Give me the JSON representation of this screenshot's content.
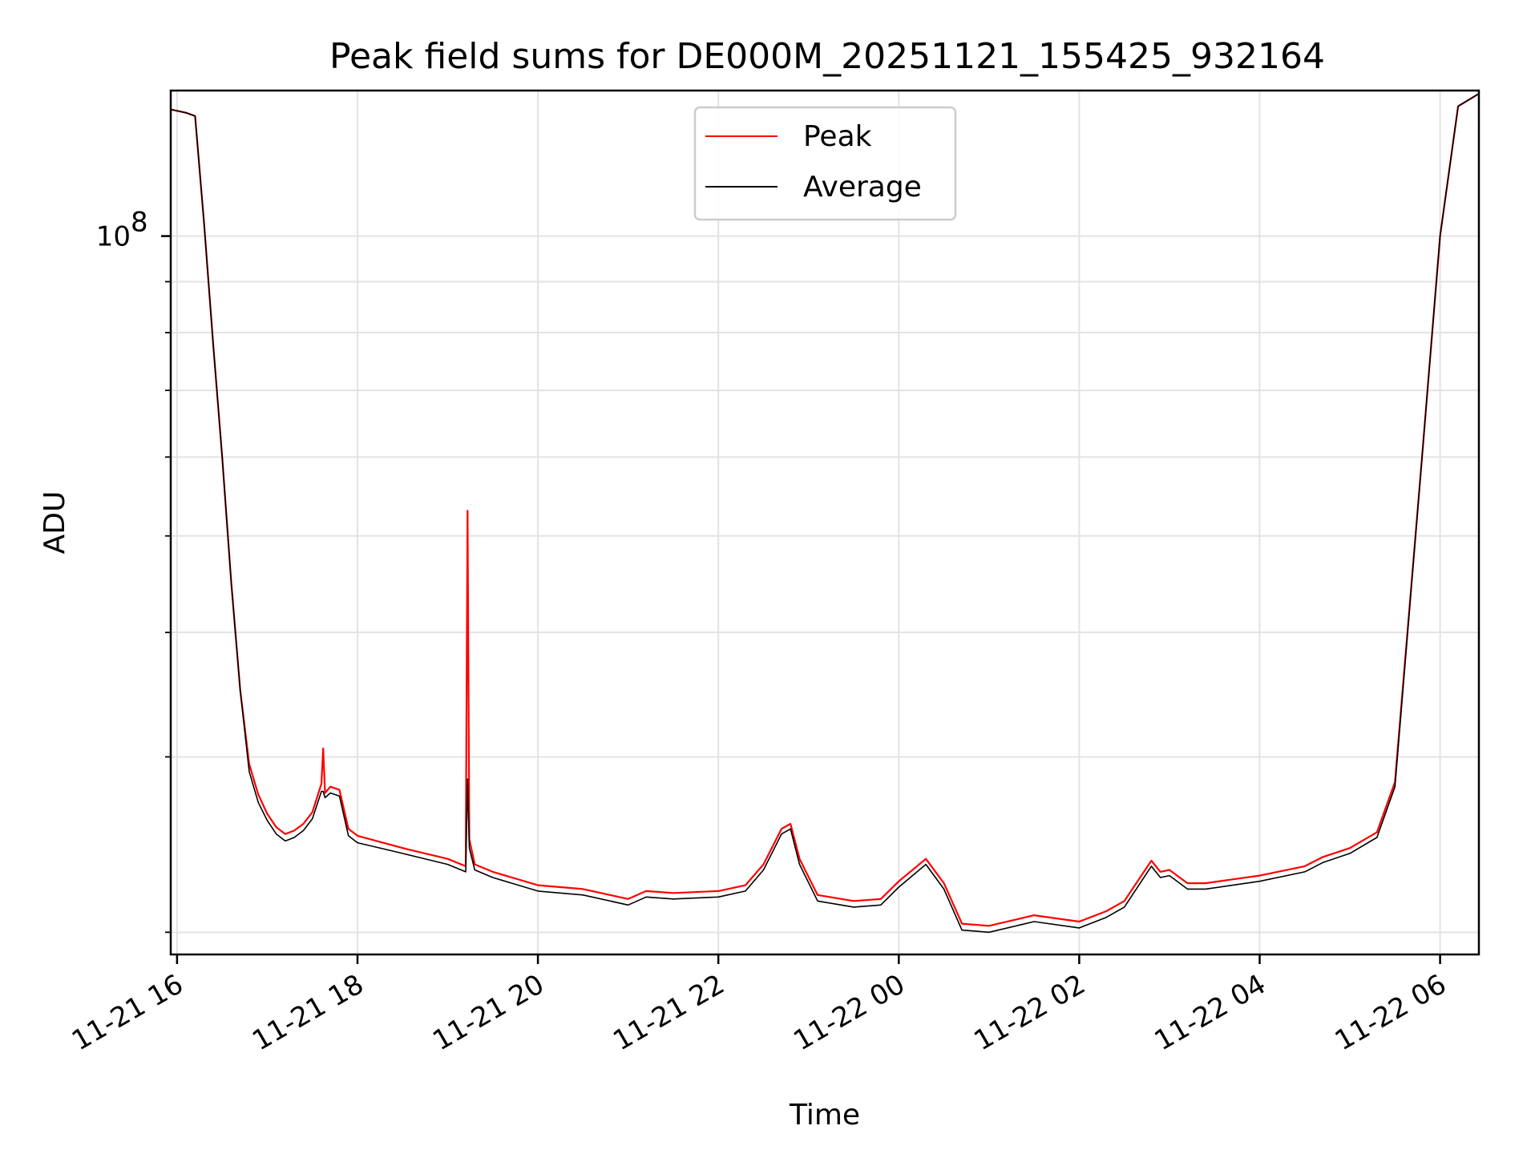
{
  "chart_data": {
    "type": "line",
    "title": "Peak field sums for DE000M_20251121_155425_932164",
    "xlabel": "Time",
    "ylabel": "ADU",
    "yscale": "log",
    "x_unit": "hours since 2025-11-21 00:00",
    "xlim": [
      15.93,
      30.43
    ],
    "ylim": [
      19000000.0,
      140000000.0
    ],
    "x_ticks": [
      16,
      18,
      20,
      22,
      24,
      26,
      28,
      30
    ],
    "x_tick_labels": [
      "11-21 16",
      "11-21 18",
      "11-21 20",
      "11-21 22",
      "11-22 00",
      "11-22 02",
      "11-22 04",
      "11-22 06"
    ],
    "y_major_ticks": [
      100000000
    ],
    "y_tick_labels": [
      "10",
      "8"
    ],
    "y_minor_ticks": [
      20000000,
      30000000,
      40000000,
      50000000,
      60000000,
      70000000,
      80000000,
      90000000,
      200000000
    ],
    "grid": true,
    "legend": {
      "position": "top-center",
      "entries": [
        "Peak",
        "Average"
      ]
    },
    "series": [
      {
        "name": "Peak",
        "color": "#ff0000",
        "x": [
          15.93,
          16.1,
          16.2,
          16.3,
          16.4,
          16.5,
          16.6,
          16.7,
          16.8,
          16.9,
          17.0,
          17.1,
          17.2,
          17.3,
          17.4,
          17.5,
          17.6,
          17.62,
          17.64,
          17.7,
          17.8,
          17.9,
          18.0,
          18.5,
          19.0,
          19.2,
          19.22,
          19.24,
          19.3,
          19.5,
          20.0,
          20.5,
          21.0,
          21.2,
          21.5,
          22.0,
          22.3,
          22.5,
          22.7,
          22.8,
          22.9,
          23.1,
          23.5,
          23.8,
          24.0,
          24.3,
          24.5,
          24.7,
          25.0,
          25.5,
          26.0,
          26.3,
          26.5,
          26.8,
          26.9,
          27.0,
          27.2,
          27.4,
          27.7,
          28.0,
          28.5,
          28.7,
          29.0,
          29.3,
          29.5,
          29.8,
          30.0,
          30.2,
          30.43
        ],
        "y": [
          134000000,
          133000000,
          132000000,
          103000000,
          78000000,
          60000000,
          45000000,
          35000000,
          29500000,
          27500000,
          26300000,
          25500000,
          25100000,
          25300000,
          25700000,
          26400000,
          28200000,
          30600000,
          27600000,
          28000000,
          27800000,
          25400000,
          25000000,
          24300000,
          23700000,
          23300000,
          53000000,
          24800000,
          23400000,
          23000000,
          22300000,
          22100000,
          21600000,
          22000000,
          21900000,
          22000000,
          22300000,
          23400000,
          25400000,
          25700000,
          23700000,
          21800000,
          21500000,
          21600000,
          22500000,
          23700000,
          22400000,
          20400000,
          20300000,
          20800000,
          20500000,
          21000000,
          21500000,
          23600000,
          23000000,
          23100000,
          22400000,
          22400000,
          22600000,
          22800000,
          23300000,
          23800000,
          24300000,
          25200000,
          28300000,
          60000000,
          100000000,
          135000000,
          139000000
        ]
      },
      {
        "name": "Average",
        "color": "#000000",
        "x": [
          15.93,
          16.1,
          16.2,
          16.3,
          16.4,
          16.5,
          16.6,
          16.7,
          16.8,
          16.9,
          17.0,
          17.1,
          17.2,
          17.3,
          17.4,
          17.5,
          17.6,
          17.62,
          17.64,
          17.7,
          17.8,
          17.9,
          18.0,
          18.5,
          19.0,
          19.2,
          19.22,
          19.24,
          19.3,
          19.5,
          20.0,
          20.5,
          21.0,
          21.2,
          21.5,
          22.0,
          22.3,
          22.5,
          22.7,
          22.8,
          22.9,
          23.1,
          23.5,
          23.8,
          24.0,
          24.3,
          24.5,
          24.7,
          25.0,
          25.5,
          26.0,
          26.3,
          26.5,
          26.8,
          26.9,
          27.0,
          27.2,
          27.4,
          27.7,
          28.0,
          28.5,
          28.7,
          29.0,
          29.3,
          29.5,
          29.8,
          30.0,
          30.2,
          30.43
        ],
        "y": [
          134000000,
          133000000,
          132000000,
          103000000,
          78000000,
          60000000,
          45000000,
          35000000,
          29000000,
          27000000,
          25900000,
          25100000,
          24700000,
          24900000,
          25300000,
          26000000,
          27700000,
          27700000,
          27300000,
          27600000,
          27400000,
          25000000,
          24600000,
          24000000,
          23400000,
          23000000,
          28500000,
          24300000,
          23100000,
          22700000,
          22000000,
          21800000,
          21300000,
          21700000,
          21600000,
          21700000,
          22000000,
          23100000,
          25100000,
          25400000,
          23400000,
          21500000,
          21200000,
          21300000,
          22200000,
          23400000,
          22100000,
          20100000,
          20000000,
          20500000,
          20200000,
          20700000,
          21200000,
          23300000,
          22700000,
          22800000,
          22100000,
          22100000,
          22300000,
          22500000,
          23000000,
          23500000,
          24000000,
          24900000,
          28000000,
          60000000,
          100000000,
          135000000,
          139000000
        ]
      }
    ]
  }
}
